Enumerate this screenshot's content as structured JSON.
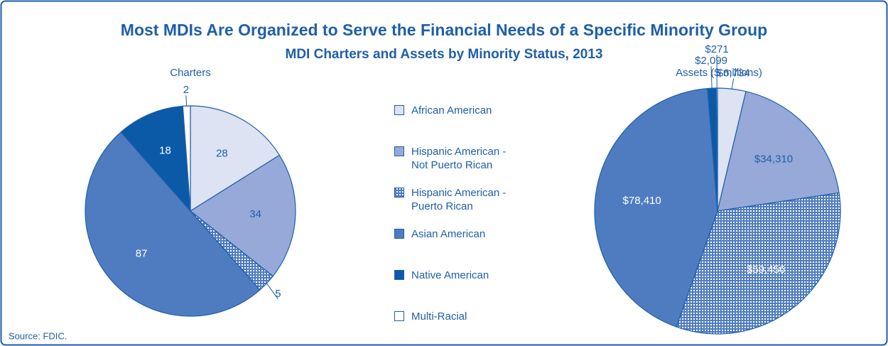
{
  "title": "Most MDIs Are Organized to Serve the Financial Needs of a Specific Minority Group",
  "subtitle": "MDI Charters and Assets by Minority Status, 2013",
  "source": "Source: FDIC.",
  "chart_data": [
    {
      "type": "pie",
      "title": "Charters",
      "categories": [
        "African American",
        "Hispanic American - Not Puerto Rican",
        "Hispanic American - Puerto Rican",
        "Asian American",
        "Native American",
        "Multi-Racial"
      ],
      "values": [
        28,
        34,
        5,
        87,
        18,
        2
      ],
      "colors": [
        "#dde3f3",
        "#97a9d8",
        "#4f7cc0",
        "#4f7cc0",
        "#0a5aa8",
        "#ffffff"
      ],
      "hatched": [
        false,
        false,
        true,
        false,
        false,
        false
      ]
    },
    {
      "type": "pie",
      "title": "Assets ($ millions)",
      "categories": [
        "African American",
        "Hispanic American - Not Puerto Rican",
        "Hispanic American - Puerto Rican",
        "Asian American",
        "Native American",
        "Multi-Racial"
      ],
      "values": [
        6734,
        34310,
        59456,
        78410,
        2099,
        271
      ],
      "value_labels": [
        "$6,734",
        "$34,310",
        "$59,456",
        "$78,410",
        "$2,099",
        "$271"
      ],
      "colors": [
        "#dde3f3",
        "#97a9d8",
        "#4f7cc0",
        "#4f7cc0",
        "#0a5aa8",
        "#ffffff"
      ],
      "hatched": [
        false,
        false,
        true,
        false,
        false,
        false
      ]
    }
  ]
}
